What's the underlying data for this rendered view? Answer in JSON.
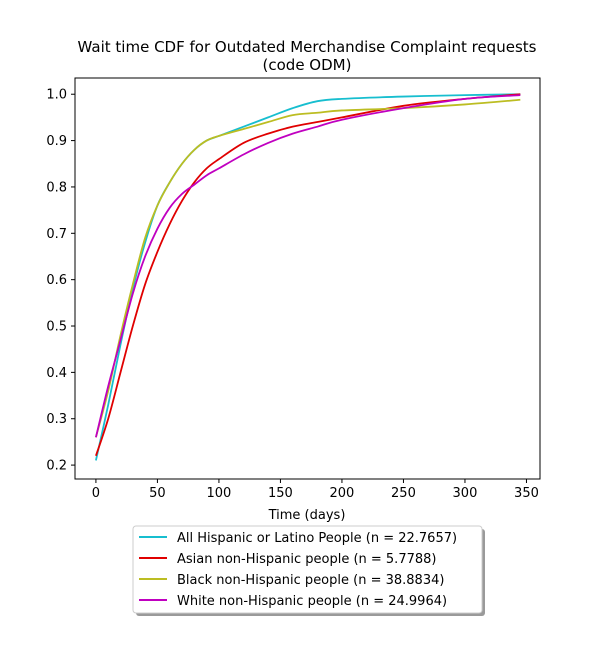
{
  "chart_data": {
    "type": "line",
    "title_line1": "Wait time CDF for Outdated Merchandise Complaint  requests",
    "title_line2": "(code ODM)",
    "xlabel": "Time (days)",
    "ylabel": "",
    "xlim": [
      -17,
      361
    ],
    "ylim": [
      0.17,
      1.035
    ],
    "x_ticks": [
      0,
      50,
      100,
      150,
      200,
      250,
      300,
      350
    ],
    "y_ticks": [
      0.2,
      0.3,
      0.4,
      0.5,
      0.6,
      0.7,
      0.8,
      0.9,
      1.0
    ],
    "y_tick_labels": [
      "0.2",
      "0.3",
      "0.4",
      "0.5",
      "0.6",
      "0.7",
      "0.8",
      "0.9",
      "1.0"
    ],
    "grid": false,
    "legend_position": "below the plot",
    "series": [
      {
        "name": "All Hispanic or Latino People (n = 22.7657)",
        "color": "#17becf",
        "x": [
          0,
          10,
          20,
          30,
          40,
          50,
          60,
          70,
          80,
          90,
          100,
          120,
          140,
          160,
          180,
          200,
          250,
          300,
          345
        ],
        "y": [
          0.21,
          0.33,
          0.46,
          0.58,
          0.68,
          0.76,
          0.81,
          0.85,
          0.88,
          0.9,
          0.91,
          0.93,
          0.95,
          0.97,
          0.985,
          0.99,
          0.995,
          0.998,
          1.0
        ]
      },
      {
        "name": "Asian non-Hispanic people (n = 5.7788)",
        "color": "#e00000",
        "x": [
          0,
          10,
          20,
          30,
          40,
          50,
          60,
          70,
          80,
          90,
          100,
          120,
          140,
          160,
          180,
          200,
          250,
          300,
          345
        ],
        "y": [
          0.22,
          0.3,
          0.4,
          0.5,
          0.59,
          0.66,
          0.72,
          0.77,
          0.81,
          0.84,
          0.86,
          0.895,
          0.915,
          0.93,
          0.94,
          0.95,
          0.975,
          0.99,
          1.0
        ]
      },
      {
        "name": "Black non-Hispanic people (n = 38.8834)",
        "color": "#bcbd22",
        "x": [
          0,
          10,
          20,
          30,
          40,
          50,
          60,
          70,
          80,
          90,
          100,
          120,
          140,
          160,
          180,
          200,
          250,
          300,
          345
        ],
        "y": [
          0.26,
          0.36,
          0.48,
          0.59,
          0.69,
          0.76,
          0.81,
          0.85,
          0.88,
          0.9,
          0.91,
          0.925,
          0.94,
          0.955,
          0.96,
          0.965,
          0.97,
          0.978,
          0.988
        ]
      },
      {
        "name": "White non-Hispanic people (n = 24.9964)",
        "color": "#c000c0",
        "x": [
          0,
          10,
          20,
          30,
          40,
          50,
          60,
          70,
          80,
          90,
          100,
          120,
          140,
          160,
          180,
          200,
          250,
          300,
          345
        ],
        "y": [
          0.26,
          0.37,
          0.47,
          0.57,
          0.65,
          0.71,
          0.755,
          0.785,
          0.805,
          0.825,
          0.84,
          0.87,
          0.895,
          0.915,
          0.93,
          0.945,
          0.97,
          0.99,
          0.998
        ]
      }
    ]
  }
}
